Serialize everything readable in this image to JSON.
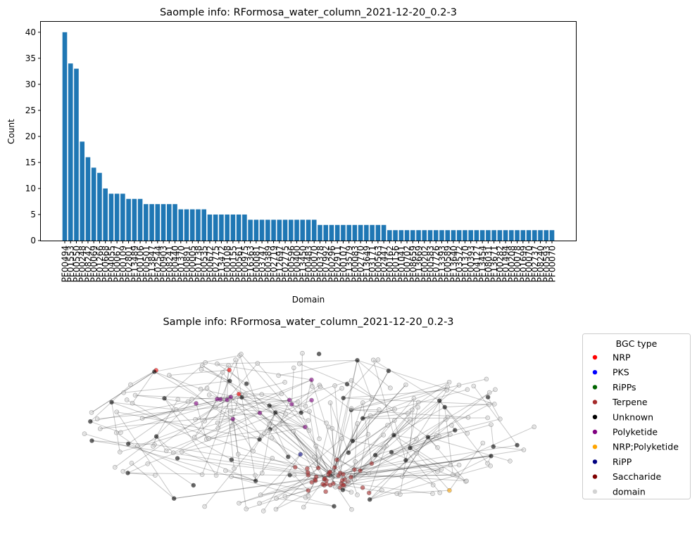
{
  "chart_data": [
    {
      "type": "bar",
      "title": "Saomple info: RFormosa_water_column_2021-12-20_0.2-3",
      "xlabel": "Domain",
      "ylabel": "Count",
      "ylim": [
        0,
        42
      ],
      "yticks": [
        0,
        5,
        10,
        15,
        20,
        25,
        30,
        35,
        40
      ],
      "grid": false,
      "bar_color": "#1f77b4",
      "categories": [
        "PF00494",
        "PF01553",
        "PF00550",
        "PF00248",
        "PF08242",
        "PF00069",
        "PF01266",
        "PF00668",
        "PF04055",
        "PF00067",
        "PF00109",
        "PF02801",
        "PF13489",
        "PF00106",
        "PF00501",
        "PF13847",
        "PF02544",
        "PF00903",
        "PF08241",
        "PF00440",
        "PF01370",
        "PF00891",
        "PF00005",
        "PF01738",
        "PF00535",
        "PF00672",
        "PF02775",
        "PF13472",
        "PF00108",
        "PF00155",
        "PF00561",
        "PF00975",
        "PF16363",
        "PF00081",
        "PF03747",
        "PF00389",
        "PF02719",
        "PF12697",
        "PF02775",
        "PF00596",
        "PF00400",
        "PF13450",
        "PF00483",
        "PF00070",
        "PF00378",
        "PF07992",
        "PF00296",
        "PF02911",
        "PF00107",
        "PF13579",
        "PF00083",
        "PF02770",
        "PF13649",
        "PF03171",
        "PF00563",
        "PF02447",
        "PF00162",
        "PF00156",
        "PF01041",
        "PF00702",
        "PF08659",
        "PF13669",
        "PF00202",
        "PF00583",
        "PF07726",
        "PF13393",
        "PF00589",
        "PF13640",
        "PF03572",
        "PF01370",
        "PF00393",
        "PF04127",
        "PF13454",
        "PF08031",
        "PF13671",
        "PF00282",
        "PF01494",
        "PF00208",
        "PF00078",
        "PF01699",
        "PF00070",
        "PF02737",
        "PF08240",
        "PF00593",
        "PF00070"
      ],
      "values": [
        40,
        34,
        33,
        19,
        16,
        14,
        13,
        10,
        9,
        9,
        9,
        8,
        8,
        8,
        7,
        7,
        7,
        7,
        7,
        7,
        6,
        6,
        6,
        6,
        6,
        5,
        5,
        5,
        5,
        5,
        5,
        5,
        4,
        4,
        4,
        4,
        4,
        4,
        4,
        4,
        4,
        4,
        4,
        4,
        3,
        3,
        3,
        3,
        3,
        3,
        3,
        3,
        3,
        3,
        3,
        3,
        2,
        2,
        2,
        2,
        2,
        2,
        2,
        2,
        2,
        2,
        2,
        2,
        2,
        2,
        2,
        2,
        2,
        2,
        2,
        2,
        2,
        2,
        2,
        2,
        2,
        2,
        2,
        2,
        2
      ]
    },
    {
      "type": "network",
      "title": "Sample info: RFormosa_water_column_2021-12-20_0.2-3",
      "legend": {
        "title": "BGC type",
        "placement": "outside-right",
        "entries": [
          {
            "label": "NRP",
            "color": "#ff0000"
          },
          {
            "label": "PKS",
            "color": "#0000ff"
          },
          {
            "label": "RiPPs",
            "color": "#006400"
          },
          {
            "label": "Terpene",
            "color": "#a52a2a"
          },
          {
            "label": "Unknown",
            "color": "#000000"
          },
          {
            "label": "Polyketide",
            "color": "#800080"
          },
          {
            "label": "NRP;Polyketide",
            "color": "#ffa500"
          },
          {
            "label": "RiPP",
            "color": "#000080"
          },
          {
            "label": "Saccharide",
            "color": "#800000"
          },
          {
            "label": "domain",
            "color": "#d3d3d3"
          }
        ]
      },
      "node_counts": {
        "NRP": 3,
        "PKS": 0,
        "RiPPs": 0,
        "Terpene": 40,
        "Unknown": 48,
        "Polyketide": 12,
        "NRP;Polyketide": 1,
        "RiPP": 1,
        "Saccharide": 0,
        "domain": 190
      }
    }
  ]
}
